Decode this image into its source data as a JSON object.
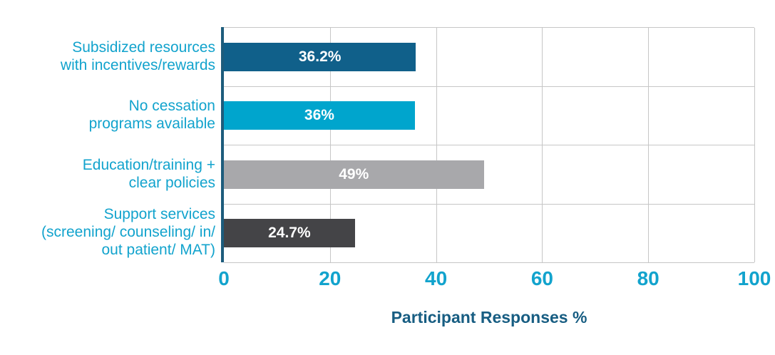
{
  "chart_data": {
    "type": "bar",
    "orientation": "horizontal",
    "title": "",
    "xlabel": "Participant Responses %",
    "ylabel": "",
    "categories": [
      "Subsidized resources\nwith incentives/rewards",
      "No cessation\nprograms available",
      "Education/training +\nclear policies",
      "Support services\n(screening/ counseling/ in/\nout patient/ MAT)"
    ],
    "values": [
      36.2,
      36,
      49,
      24.7
    ],
    "value_labels": [
      "36.2%",
      "36%",
      "49%",
      "24.7%"
    ],
    "bar_colors": [
      "#10608A",
      "#00A5CD",
      "#A8A8AB",
      "#444447"
    ],
    "x_ticks": [
      "0",
      "20",
      "40",
      "60",
      "80",
      "100"
    ],
    "xlim": [
      0,
      100
    ],
    "grid": "on",
    "legend": "none"
  },
  "colors": {
    "category_label": "#12A3CD",
    "tick_label": "#12A3CD",
    "axis_title": "#175D82",
    "y_axis_line": "#1D5C7C",
    "gridline": "#C6C6C6",
    "value_label": "#FFFFFF",
    "background": "#FFFFFF"
  }
}
